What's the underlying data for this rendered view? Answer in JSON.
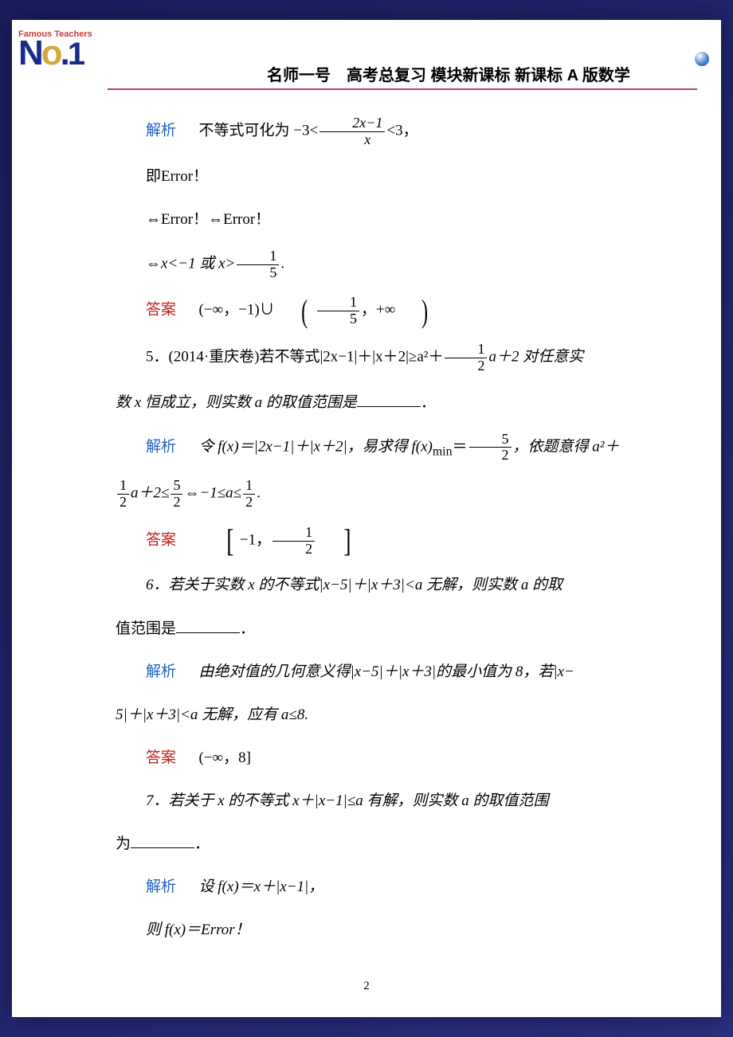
{
  "header": {
    "logo_line1": "Famous Teachers",
    "logo_text": "No.1",
    "title": "名师一号　高考总复习 模块新课标 新课标 A 版数学"
  },
  "content": {
    "p1_label": "解析",
    "p1_text1": "不等式可化为",
    "p1_math_left": "−3<",
    "p1_frac_num": "2x−1",
    "p1_frac_den": "x",
    "p1_math_right": "<3，",
    "p2": "即Error！",
    "p3": "⇔Error！⇔Error！",
    "p4_left": "⇔x<−1 或 x>",
    "p4_frac_num": "1",
    "p4_frac_den": "5",
    "p4_right": ".",
    "ans1_label": "答案",
    "ans1_left": "(−∞，−1)∪",
    "ans1_frac_num": "1",
    "ans1_frac_den": "5",
    "ans1_right": "，+∞",
    "q5_num": "5．(2014·重庆卷)",
    "q5_text1": "若不等式|2x−1|＋|x＋2|≥a²＋",
    "q5_frac_num": "1",
    "q5_frac_den": "2",
    "q5_text2": "a＋2 对任意实",
    "q5_line2": "数 x 恒成立，则实数 a 的取值范围是",
    "q5_period": "．",
    "sol5_label": "解析",
    "sol5_text1": "令 f(x)＝|2x−1|＋|x＋2|，易求得 f(x)",
    "sol5_min": "min",
    "sol5_eq": "＝",
    "sol5_frac1_num": "5",
    "sol5_frac1_den": "2",
    "sol5_text2": "，依题意得 a²＋",
    "sol5_line2_frac1_num": "1",
    "sol5_line2_frac1_den": "2",
    "sol5_line2_text1": "a＋2≤",
    "sol5_line2_frac2_num": "5",
    "sol5_line2_frac2_den": "2",
    "sol5_line2_text2": "⇔−1≤a≤",
    "sol5_line2_frac3_num": "1",
    "sol5_line2_frac3_den": "2",
    "sol5_line2_text3": ".",
    "ans5_label": "答案",
    "ans5_left": "−1，",
    "ans5_frac_num": "1",
    "ans5_frac_den": "2",
    "q6_text1": "6．若关于实数 x 的不等式|x−5|＋|x＋3|<a 无解，则实数 a 的取",
    "q6_text2": "值范围是",
    "q6_period": "．",
    "sol6_label": "解析",
    "sol6_text1": "由绝对值的几何意义得|x−5|＋|x＋3|的最小值为 8，若|x−",
    "sol6_text2": "5|＋|x＋3|<a 无解，应有 a≤8.",
    "ans6_label": "答案",
    "ans6_text": "(−∞，8]",
    "q7_text1": "7．若关于 x 的不等式 x＋|x−1|≤a 有解，则实数 a 的取值范围",
    "q7_text2": "为",
    "q7_period": "．",
    "sol7_label": "解析",
    "sol7_text1": "设 f(x)＝x＋|x−1|，",
    "sol7_text2": "则 f(x)＝Error！"
  },
  "pagenum": "2"
}
